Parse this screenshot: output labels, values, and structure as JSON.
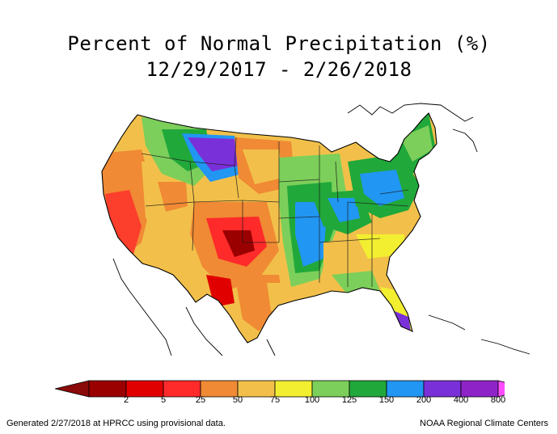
{
  "title_line1": "Percent of Normal Precipitation (%)",
  "title_line2": "12/29/2017 - 2/26/2018",
  "legend": {
    "bins": [
      {
        "label": "2",
        "color": "#9b0000"
      },
      {
        "label": "5",
        "color": "#e00000"
      },
      {
        "label": "25",
        "color": "#ff2a2a"
      },
      {
        "label": "50",
        "color": "#f08a34"
      },
      {
        "label": "75",
        "color": "#f2c04a"
      },
      {
        "label": "100",
        "color": "#f2ee30"
      },
      {
        "label": "125",
        "color": "#7ccf5a"
      },
      {
        "label": "150",
        "color": "#21a83a"
      },
      {
        "label": "200",
        "color": "#2196f3"
      },
      {
        "label": "400",
        "color": "#7a30d8"
      },
      {
        "label": "800",
        "color": "#8e24c8"
      }
    ],
    "low_arrow_color": "#8a0a0a",
    "high_arrow_color": "#ff4cff"
  },
  "footer_left": "Generated 2/27/2018 at HPRCC using provisional data.",
  "footer_right": "NOAA Regional Climate Centers"
}
